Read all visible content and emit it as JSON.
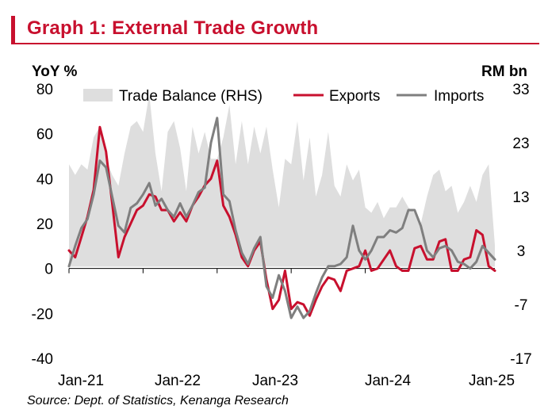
{
  "title": "Graph 1: External Trade Growth",
  "source": "Source:  Dept. of Statistics, Kenanga Research",
  "colors": {
    "accent": "#c8102e",
    "exports": "#c8102e",
    "imports": "#7f7f7f",
    "trade_balance": "#dedede"
  },
  "chart_data": {
    "type": "line",
    "title": "Graph 1: External Trade Growth",
    "ylabel": "YoY %",
    "y2label": "RM bn",
    "ylim": [
      -40,
      80
    ],
    "y2lim": [
      -17,
      33
    ],
    "yticks": [
      -40,
      -20,
      0,
      20,
      40,
      60,
      80
    ],
    "y2ticks": [
      -17,
      -7,
      3,
      13,
      23,
      33
    ],
    "xticks": [
      "Jan-21",
      "Jan-22",
      "Jan-23",
      "Jan-24",
      "Jan-25"
    ],
    "grid": false,
    "legend_position": "top",
    "series": [
      {
        "name": "Trade Balance (RHS)",
        "chart_type": "area",
        "axis": "right",
        "values": [
          19,
          17,
          19,
          18,
          24,
          26,
          20,
          17,
          15,
          21,
          26,
          27,
          25,
          32,
          21,
          14,
          25,
          27,
          22,
          14,
          26,
          21,
          25,
          20,
          20,
          24,
          30,
          19,
          27,
          19,
          26,
          21,
          26,
          18,
          11,
          20,
          19,
          27,
          16,
          24,
          13,
          17,
          25,
          15,
          13,
          19,
          16,
          18,
          11,
          10,
          12,
          9,
          11,
          11,
          13,
          11,
          10,
          8,
          13,
          17,
          18,
          14,
          15,
          10,
          12,
          15,
          12,
          17,
          19,
          4
        ]
      },
      {
        "name": "Exports",
        "chart_type": "line",
        "axis": "left",
        "values": [
          8,
          5,
          14,
          23,
          35,
          63,
          52,
          29,
          5,
          14,
          20,
          26,
          28,
          33,
          32,
          26,
          26,
          21,
          25,
          21,
          28,
          32,
          37,
          40,
          48,
          28,
          23,
          15,
          5,
          1,
          8,
          12,
          -5,
          -18,
          -14,
          -1,
          -18,
          -15,
          -16,
          -21,
          -14,
          -8,
          -4,
          -5,
          -10,
          -1,
          0,
          1,
          8,
          -1,
          0,
          4,
          8,
          1,
          -1,
          -1,
          9,
          10,
          4,
          4,
          12,
          13,
          -1,
          -1,
          4,
          5,
          17,
          15,
          1,
          -1
        ]
      },
      {
        "name": "Imports",
        "chart_type": "line",
        "axis": "left",
        "values": [
          1,
          10,
          18,
          22,
          33,
          48,
          45,
          32,
          19,
          16,
          27,
          29,
          33,
          38,
          28,
          31,
          26,
          23,
          29,
          23,
          28,
          34,
          36,
          56,
          67,
          33,
          30,
          17,
          7,
          2,
          9,
          14,
          -8,
          -13,
          -3,
          -10,
          -22,
          -17,
          -22,
          -19,
          -11,
          -4,
          1,
          1,
          2,
          5,
          19,
          8,
          4,
          8,
          14,
          14,
          17,
          16,
          18,
          26,
          26,
          19,
          8,
          5,
          9,
          10,
          8,
          3,
          2,
          0,
          3,
          10,
          7,
          4
        ]
      }
    ]
  }
}
